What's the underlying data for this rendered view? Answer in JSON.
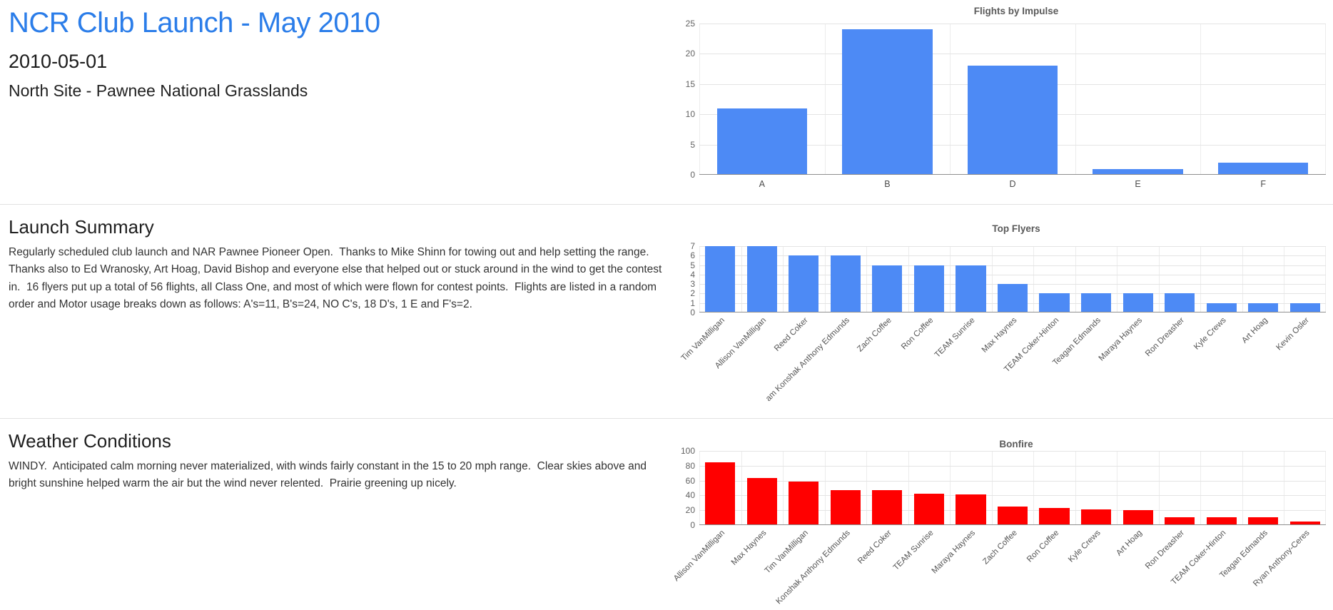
{
  "page": {
    "title": "NCR Club Launch - May 2010",
    "date": "2010-05-01",
    "location": "North Site - Pawnee National Grasslands"
  },
  "sections": {
    "launch_summary": {
      "heading": "Launch Summary",
      "body": "Regularly scheduled club launch and NAR Pawnee Pioneer Open.  Thanks to Mike Shinn for towing out and help setting the range.  Thanks also to Ed Wranosky, Art Hoag, David Bishop and everyone else that helped out or stuck around in the wind to get the contest in.  16 flyers put up a total of 56 flights, all Class One, and most of which were flown for contest points.  Flights are listed in a random order and Motor usage breaks down as follows: A's=11, B's=24, NO C's, 18 D's, 1 E and F's=2."
    },
    "weather": {
      "heading": "Weather Conditions",
      "body": "WINDY.  Anticipated calm morning never materialized, with winds fairly constant in the 15 to 20 mph range.  Clear skies above and bright sunshine helped warm the air but the wind never relented.  Prairie greening up nicely."
    }
  },
  "colors": {
    "title_blue": "#2b7de9",
    "bar_blue": "#4d8af5",
    "bar_red": "#ff0000",
    "gridline": "#e4e4e4",
    "axis_baseline": "#8f8f8f"
  },
  "chart_data": [
    {
      "type": "bar",
      "title": "Flights by Impulse",
      "categories": [
        "A",
        "B",
        "D",
        "E",
        "F"
      ],
      "values": [
        11,
        24,
        18,
        1,
        2
      ],
      "yticks": [
        0,
        5,
        10,
        15,
        20,
        25
      ],
      "ylim": [
        0,
        25
      ],
      "xlabel": "",
      "ylabel": "",
      "grid": true,
      "legend": "none",
      "bar_color": "#4d8af5"
    },
    {
      "type": "bar",
      "title": "Top Flyers",
      "categories": [
        "Tim VanMilligan",
        "Allison VanMilligan",
        "Reed Coker",
        "am  Konshak Anthony Edmunds",
        "Zach Coffee",
        "Ron Coffee",
        "TEAM Sunrise",
        "Max Haynes",
        "TEAM Coker-Hinton",
        "Teagan Edmands",
        "Maraya Haynes",
        "Ron Dreasher",
        "Kyle Crews",
        "Art Hoag",
        "Kevin Osler"
      ],
      "values": [
        7,
        7,
        6,
        6,
        5,
        5,
        5,
        3,
        2,
        2,
        2,
        2,
        1,
        1,
        1
      ],
      "yticks": [
        0,
        1,
        2,
        3,
        4,
        5,
        6,
        7
      ],
      "ylim": [
        0,
        7
      ],
      "xlabel": "",
      "ylabel": "",
      "grid": true,
      "legend": "none",
      "label_rotation": -45,
      "bar_color": "#4d8af5"
    },
    {
      "type": "bar",
      "title": "Bonfire",
      "categories": [
        "Allison VanMilligan",
        "Max Haynes",
        "Tim VanMilligan",
        "Konshak Anthony Edmunds",
        "Reed Coker",
        "TEAM Sunrise",
        "Maraya Haynes",
        "Zach Coffee",
        "Ron Coffee",
        "Kyle Crews",
        "Art Hoag",
        "Ron Dreasher",
        "TEAM Coker-Hinton",
        "Teagan Edmands",
        "Ryan Anthony-Ceres"
      ],
      "values": [
        85,
        63,
        59,
        47,
        47,
        42,
        41,
        25,
        23,
        21,
        20,
        11,
        11,
        11,
        5
      ],
      "yticks": [
        0,
        20,
        40,
        60,
        80,
        100
      ],
      "ylim": [
        0,
        100
      ],
      "xlabel": "",
      "ylabel": "",
      "grid": true,
      "legend": "none",
      "label_rotation": -45,
      "bar_color": "#ff0000"
    }
  ]
}
